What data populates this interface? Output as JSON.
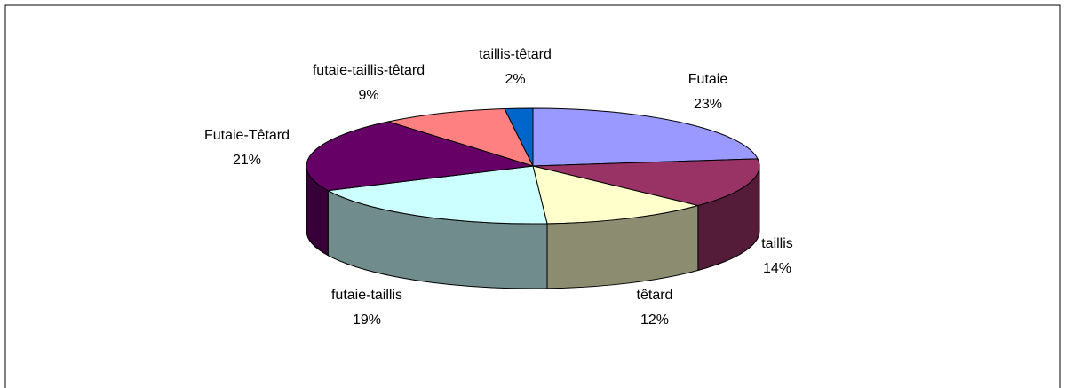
{
  "chart_data": {
    "type": "pie3d",
    "categories": [
      "Futaie",
      "taillis",
      "têtard",
      "futaie-taillis",
      "Futaie-Têtard",
      "futaie-taillis-têtard",
      "taillis-têtard"
    ],
    "values": [
      23,
      14,
      12,
      19,
      21,
      9,
      2
    ],
    "value_labels": [
      "23%",
      "14%",
      "12%",
      "19%",
      "21%",
      "9%",
      "2%"
    ],
    "colors": [
      "#9999ff",
      "#993366",
      "#ffffcc",
      "#ccffff",
      "#660066",
      "#ff8080",
      "#0066cc"
    ]
  }
}
